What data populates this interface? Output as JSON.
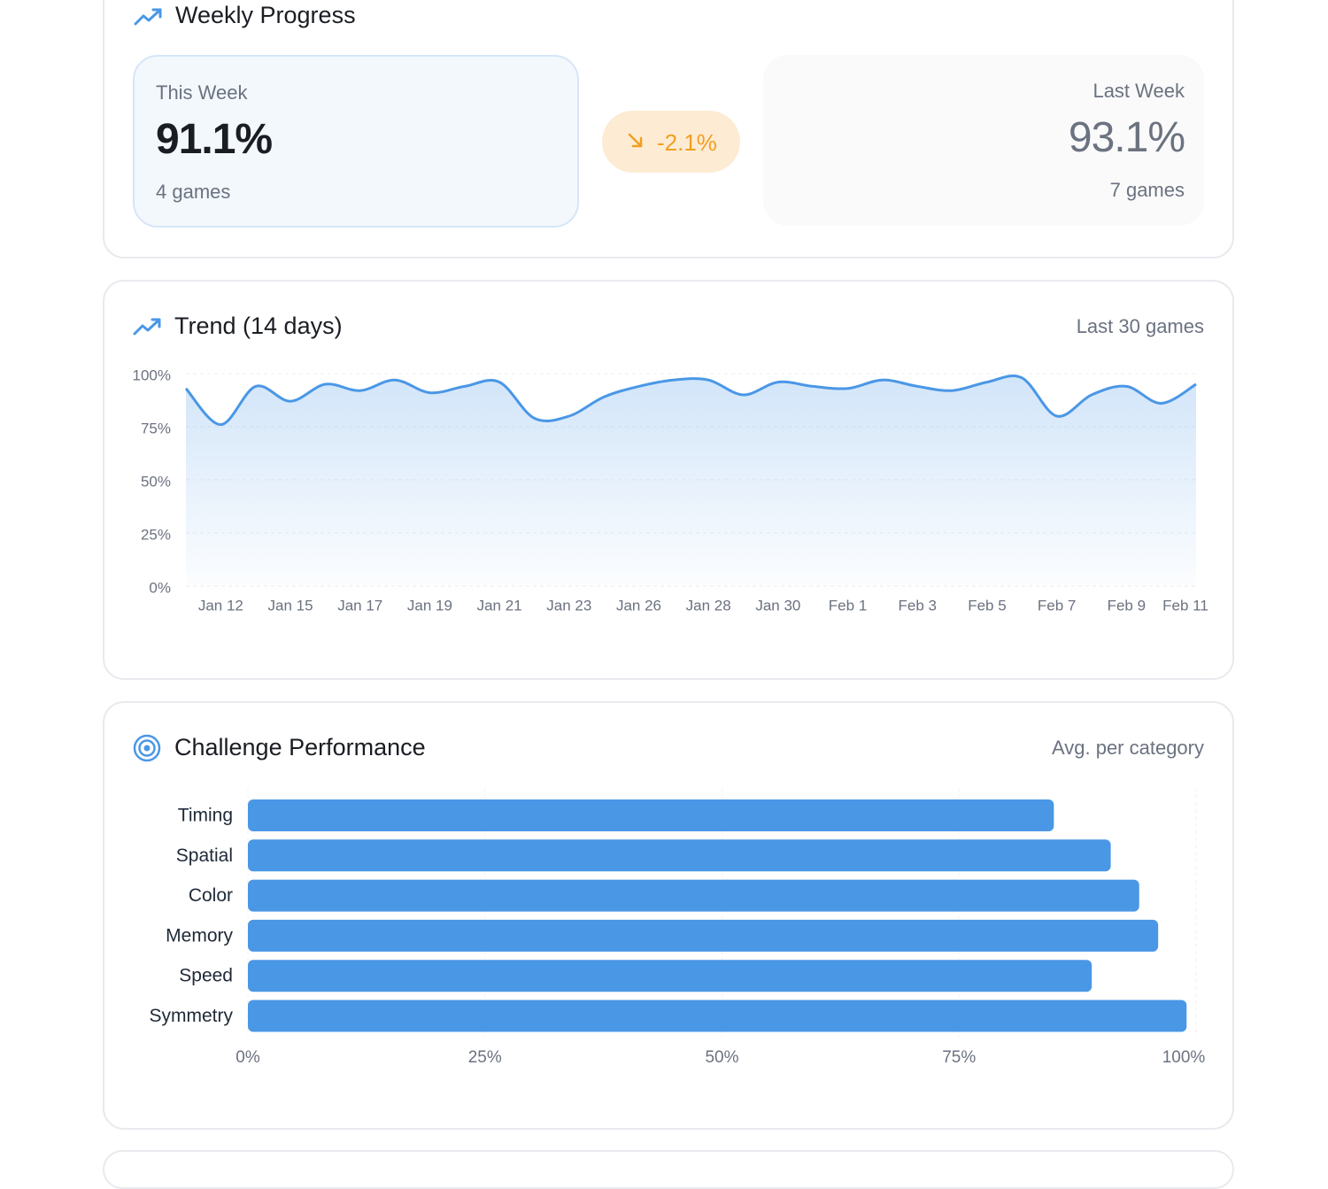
{
  "weekly": {
    "title": "Weekly Progress",
    "this_week": {
      "label": "This Week",
      "value": "91.1%",
      "games": "4 games"
    },
    "change": "-2.1%",
    "last_week": {
      "label": "Last Week",
      "value": "93.1%",
      "games": "7 games"
    }
  },
  "chart_data": [
    {
      "type": "line",
      "title": "Trend (14 days)",
      "subtitle": "Last 30 games",
      "categories": [
        null,
        "Jan 12",
        null,
        "Jan 15",
        null,
        "Jan 17",
        null,
        "Jan 19",
        null,
        "Jan 21",
        null,
        "Jan 23",
        null,
        "Jan 26",
        null,
        "Jan 28",
        null,
        "Jan 30",
        null,
        "Feb 1",
        null,
        "Feb 3",
        null,
        "Feb 5",
        null,
        "Feb 7",
        null,
        "Feb 9",
        null,
        "Feb 11"
      ],
      "values": [
        93,
        76,
        94,
        87,
        95,
        92,
        97,
        91,
        94,
        96,
        79,
        80,
        89,
        94,
        97,
        97,
        90,
        96,
        94,
        93,
        97,
        94,
        92,
        96,
        98,
        80,
        90,
        94,
        86,
        95
      ],
      "color": "#4a97e6",
      "ylim": [
        0,
        100
      ],
      "yticks": [
        {
          "value": 0,
          "label": "0%"
        },
        {
          "value": 25,
          "label": "25%"
        },
        {
          "value": 50,
          "label": "50%"
        },
        {
          "value": 75,
          "label": "75%"
        },
        {
          "value": 100,
          "label": "100%"
        }
      ],
      "grid": true
    },
    {
      "type": "bar",
      "orientation": "horizontal",
      "title": "Challenge Performance",
      "subtitle": "Avg. per category",
      "categories": [
        "Timing",
        "Spatial",
        "Color",
        "Memory",
        "Speed",
        "Symmetry"
      ],
      "values": [
        85,
        91,
        94,
        96,
        89,
        99
      ],
      "color": "#4a97e6",
      "xlim": [
        0,
        100
      ],
      "xticks": [
        {
          "value": 0,
          "label": "0%"
        },
        {
          "value": 25,
          "label": "25%"
        },
        {
          "value": 50,
          "label": "50%"
        },
        {
          "value": 75,
          "label": "75%"
        },
        {
          "value": 100,
          "label": "100%"
        }
      ],
      "grid": true
    }
  ]
}
